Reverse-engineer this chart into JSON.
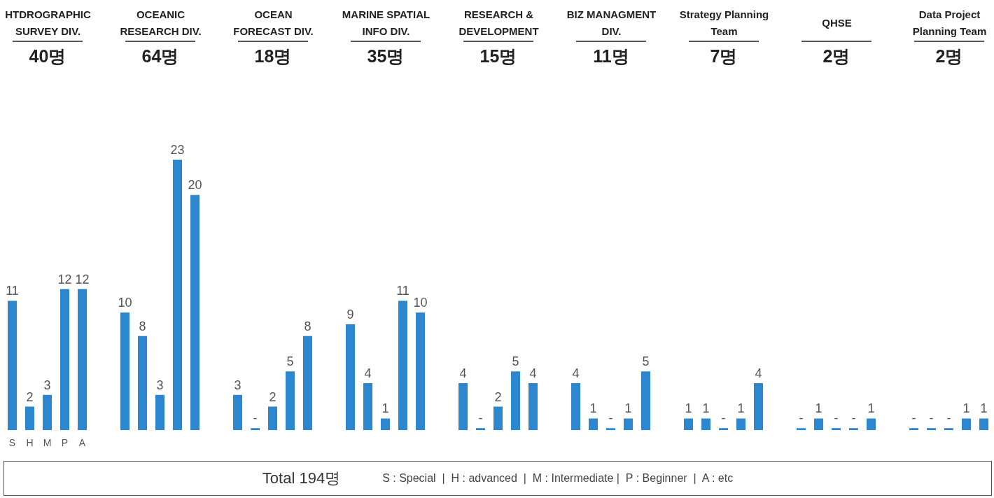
{
  "chart_data": [
    {
      "type": "bar",
      "title": "HTDROGRAPHIC SURVEY DIV.",
      "subtitle": "40명",
      "categories": [
        "S",
        "H",
        "M",
        "P",
        "A"
      ],
      "values": [
        11,
        2,
        3,
        12,
        12
      ],
      "value_labels": [
        "11",
        "2",
        "3",
        "12",
        "12"
      ],
      "color": "#2d87cf",
      "tick_labels": "x"
    },
    {
      "type": "bar",
      "title": "OCEANIC RESEARCH DIV.",
      "subtitle": "64명",
      "categories": [
        null,
        null,
        null,
        null,
        null
      ],
      "values": [
        10,
        8,
        3,
        23,
        20
      ],
      "value_labels": [
        "10",
        "8",
        "3",
        "23",
        "20"
      ],
      "color": "#2d87cf",
      "tick_labels": "x"
    },
    {
      "type": "bar",
      "title": "OCEAN FORECAST DIV.",
      "subtitle": "18명",
      "categories": [
        null,
        null,
        null,
        null,
        null
      ],
      "values": [
        3,
        0,
        2,
        5,
        8
      ],
      "value_labels": [
        "3",
        "-",
        "2",
        "5",
        "8"
      ],
      "color": "#2d87cf",
      "tick_labels": "x"
    },
    {
      "type": "bar",
      "title": "MARINE SPATIAL INFO DIV.",
      "subtitle": "35명",
      "categories": [
        null,
        null,
        null,
        null,
        null
      ],
      "values": [
        9,
        4,
        1,
        11,
        10
      ],
      "value_labels": [
        "9",
        "4",
        "1",
        "11",
        "10"
      ],
      "color": "#2d87cf",
      "tick_labels": "x"
    },
    {
      "type": "bar",
      "title": "RESEARCH & DEVELOPMENT",
      "subtitle": "15명",
      "categories": [
        null,
        null,
        null,
        null,
        null
      ],
      "values": [
        4,
        0,
        2,
        5,
        4
      ],
      "value_labels": [
        "4",
        "-",
        "2",
        "5",
        "4"
      ],
      "color": "#2d87cf",
      "tick_labels": "x"
    },
    {
      "type": "bar",
      "title": "BIZ MANAGMENT DIV.",
      "subtitle": "11명",
      "categories": [
        null,
        null,
        null,
        null,
        null
      ],
      "values": [
        4,
        1,
        0,
        1,
        5
      ],
      "value_labels": [
        "4",
        "1",
        "-",
        "1",
        "5"
      ],
      "color": "#2d87cf",
      "tick_labels": "x"
    },
    {
      "type": "bar",
      "title": "Strategy Planning Team",
      "subtitle": "7명",
      "categories": [
        null,
        null,
        null,
        null,
        null
      ],
      "values": [
        1,
        1,
        0,
        1,
        4
      ],
      "value_labels": [
        "1",
        "1",
        "-",
        "1",
        "4"
      ],
      "color": "#2d87cf",
      "tick_labels": "x"
    },
    {
      "type": "bar",
      "title": "QHSE",
      "subtitle": "2명",
      "categories": [
        null,
        null,
        null,
        null,
        null
      ],
      "values": [
        0,
        1,
        0,
        0,
        1
      ],
      "value_labels": [
        "-",
        "1",
        "-",
        "-",
        "1"
      ],
      "color": "#2d87cf",
      "tick_labels": "x"
    },
    {
      "type": "bar",
      "title": "Data Project Planning Team",
      "subtitle": "2명",
      "categories": [
        null,
        null,
        null,
        null,
        null
      ],
      "values": [
        0,
        0,
        0,
        1,
        1
      ],
      "value_labels": [
        "-",
        "-",
        "-",
        "1",
        "1"
      ],
      "color": "#2d87cf",
      "tick_labels": "x"
    },
    {
      "type": "other",
      "title": "Total 194명",
      "annotations": [
        "S : Special  |  H : advanced  |  M : Intermediate |  P : Beginner  |  A : etc"
      ]
    }
  ]
}
